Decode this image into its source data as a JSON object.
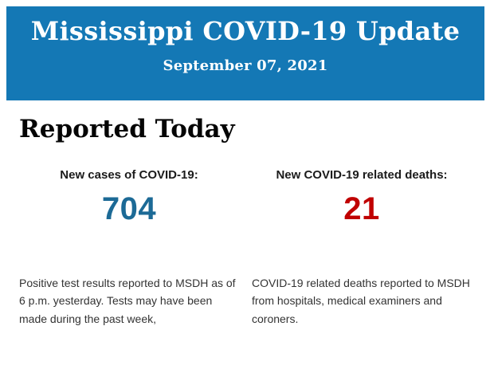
{
  "header": {
    "title": "Mississippi COVID-19 Update",
    "date": "September 07, 2021",
    "background_color": "#1478B5",
    "text_color": "#FFFFFF"
  },
  "section": {
    "heading": "Reported Today"
  },
  "stats": [
    {
      "label": "New cases of COVID-19:",
      "value": "704",
      "value_color": "#1C6A96",
      "description": "Positive test results reported to MSDH as of 6 p.m. yesterday. Tests may have been made during the past week,"
    },
    {
      "label": "New COVID-19 related deaths:",
      "value": "21",
      "value_color": "#C00000",
      "description": "COVID-19 related deaths reported to MSDH from hospitals, medical examiners and coroners."
    }
  ]
}
